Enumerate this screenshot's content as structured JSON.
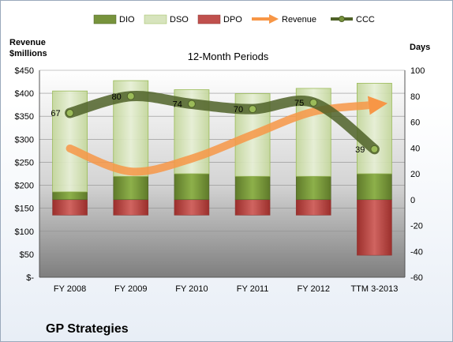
{
  "chart_data": {
    "type": "bar",
    "title": "12-Month Periods",
    "company": "GP Strategies",
    "ylabel_left": "Revenue\n$millions",
    "ylabel_right": "Days",
    "categories": [
      "FY 2008",
      "FY 2009",
      "FY 2010",
      "FY 2011",
      "FY 2012",
      "TTM 3-2013"
    ],
    "left_axis": {
      "min": 0,
      "max": 450,
      "step": 50,
      "tick_labels": [
        "$-",
        "$50",
        "$100",
        "$150",
        "$200",
        "$250",
        "$300",
        "$350",
        "$400",
        "$450"
      ]
    },
    "right_axis": {
      "min": -60,
      "max": 100,
      "step": 20,
      "tick_labels": [
        "-60",
        "-40",
        "-20",
        "0",
        "20",
        "40",
        "60",
        "80",
        "100"
      ]
    },
    "series": [
      {
        "name": "DIO",
        "axis": "right",
        "kind": "stacked-bar",
        "color": "#77933c",
        "values": [
          6,
          18,
          20,
          18,
          18,
          20
        ]
      },
      {
        "name": "DSO",
        "axis": "right",
        "kind": "stacked-bar",
        "color": "#d7e4bd",
        "values": [
          78,
          74,
          65,
          64,
          68,
          70
        ]
      },
      {
        "name": "DPO",
        "axis": "right",
        "kind": "stacked-bar-negative",
        "color": "#c0504d",
        "values": [
          -12,
          -12,
          -12,
          -12,
          -12,
          -43
        ]
      },
      {
        "name": "Revenue",
        "axis": "left",
        "kind": "line",
        "color": "#f79646",
        "values": [
          280,
          230,
          258,
          310,
          360,
          375
        ]
      },
      {
        "name": "CCC",
        "axis": "right",
        "kind": "line",
        "color": "#4f6228",
        "values": [
          67,
          80,
          74,
          70,
          75,
          39
        ]
      }
    ],
    "ccc_labels": [
      "67",
      "80",
      "74",
      "70",
      "75",
      "39"
    ],
    "legend_position": "top",
    "grid": true
  }
}
